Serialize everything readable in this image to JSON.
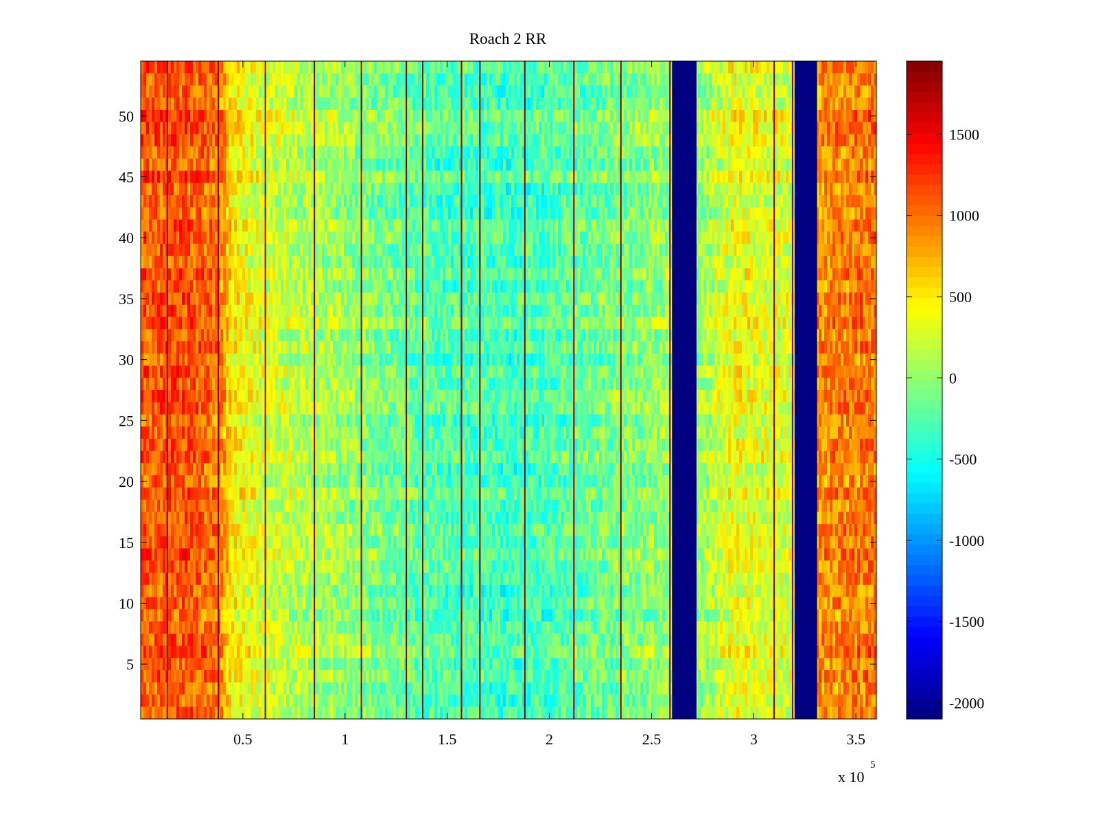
{
  "chart_data": {
    "type": "heatmap",
    "title": "Roach 2 RR",
    "xlabel": "",
    "ylabel": "",
    "x_exponent_label": "x 10",
    "x_exponent": "5",
    "xlim": [
      0,
      3.6
    ],
    "ylim": [
      0.5,
      54.5
    ],
    "rows": 54,
    "xticks": [
      0.5,
      1,
      1.5,
      2,
      2.5,
      3,
      3.5
    ],
    "xtick_labels": [
      "0.5",
      "1",
      "1.5",
      "2",
      "2.5",
      "3",
      "3.5"
    ],
    "yticks": [
      5,
      10,
      15,
      20,
      25,
      30,
      35,
      40,
      45,
      50
    ],
    "ytick_labels": [
      "5",
      "10",
      "15",
      "20",
      "25",
      "30",
      "35",
      "40",
      "45",
      "50"
    ],
    "colorbar": {
      "colormap": "jet",
      "clim": [
        -2100,
        1950
      ],
      "ticks": [
        -2000,
        -1500,
        -1000,
        -500,
        0,
        500,
        1000,
        1500
      ],
      "tick_labels": [
        "-2000",
        "-1500",
        "-1000",
        "-500",
        "0",
        "500",
        "1000",
        "1500"
      ]
    },
    "column_profile": [
      {
        "x": 0.0,
        "value": 1100
      },
      {
        "x": 0.2,
        "value": 1150
      },
      {
        "x": 0.38,
        "value": 1000
      },
      {
        "x": 0.45,
        "value": 500
      },
      {
        "x": 0.6,
        "value": 300
      },
      {
        "x": 0.8,
        "value": 150
      },
      {
        "x": 1.0,
        "value": 50
      },
      {
        "x": 1.2,
        "value": -100
      },
      {
        "x": 1.5,
        "value": -250
      },
      {
        "x": 1.8,
        "value": -300
      },
      {
        "x": 2.0,
        "value": -250
      },
      {
        "x": 2.2,
        "value": -150
      },
      {
        "x": 2.4,
        "value": -50
      },
      {
        "x": 2.58,
        "value": 50
      },
      {
        "x": 2.72,
        "value": 0
      },
      {
        "x": 2.9,
        "value": 400
      },
      {
        "x": 3.0,
        "value": 350
      },
      {
        "x": 3.2,
        "value": 250
      },
      {
        "x": 3.32,
        "value": 900
      },
      {
        "x": 3.6,
        "value": 1000
      }
    ],
    "gaps": [
      {
        "x_start": 2.6,
        "x_end": 2.72,
        "value": -2100
      },
      {
        "x_start": 3.2,
        "x_end": 3.31,
        "value": -2100
      }
    ],
    "spike_lines_x": [
      0.13,
      0.38,
      0.61,
      0.85,
      1.08,
      1.3,
      1.38,
      1.57,
      1.66,
      1.88,
      2.12,
      2.35,
      2.59,
      3.1,
      3.19
    ]
  }
}
